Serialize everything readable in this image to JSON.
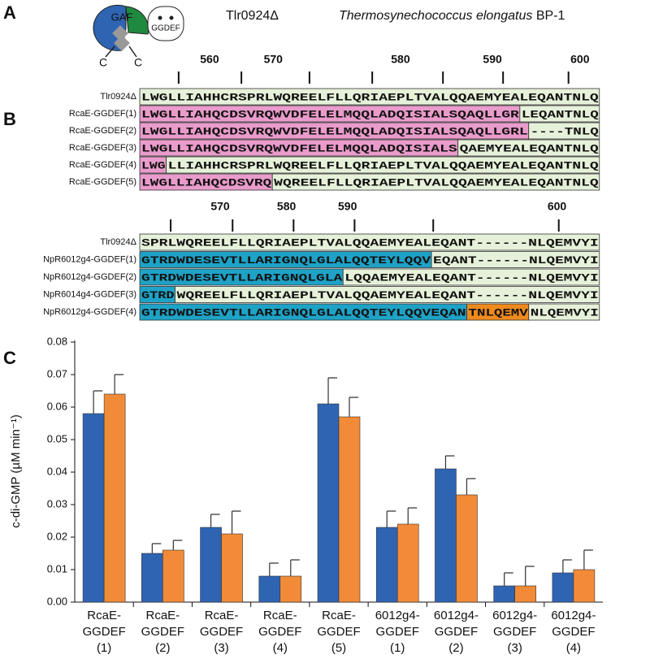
{
  "panel_a": {
    "letter": "A",
    "icon": {
      "domain1": "GAF",
      "domain2": "GGDEF",
      "terminus1": "C",
      "terminus2": "C"
    },
    "construct": "Tlr0924Δ",
    "organism": "Thermosynechococcus elongatus",
    "strain": "BP-1"
  },
  "panel_b": {
    "letter": "B",
    "alignments": [
      {
        "ruler": [
          560,
          570,
          580,
          590,
          600
        ],
        "rows": [
          {
            "label": "Tlr0924Δ",
            "segments": [
              {
                "text": "LWGLLIAHHCRSPRLWQREELFLLQRIAEPLTVALQQAEMYEALEQANTNLQ",
                "color": "#e6f1d9"
              }
            ]
          },
          {
            "label": "RcaE-GGDEF(1)",
            "segments": [
              {
                "text": "LWGLLIAHQCDSVRQWVDFELELMQQLADQISIALSQAQLLGR",
                "color": "#e99bcb"
              },
              {
                "text": "LEQANTNLQ",
                "color": "#e6f1d9"
              }
            ]
          },
          {
            "label": "RcaE-GGDEF(2)",
            "segments": [
              {
                "text": "LWGLLIAHQCDSVRQWVDFELELMQQLADQISIALSQAQLLGRL",
                "color": "#e99bcb"
              },
              {
                "text": "----TNLQ",
                "color": "#e6f1d9"
              }
            ]
          },
          {
            "label": "RcaE-GGDEF(3)",
            "segments": [
              {
                "text": "LWGLLIAHQCDSVRQWVDFELELMQQLADQISIALS",
                "color": "#e99bcb"
              },
              {
                "text": "QAEMYEALEQANTNLQ",
                "color": "#e6f1d9"
              }
            ]
          },
          {
            "label": "RcaE-GGDEF(4)",
            "segments": [
              {
                "text": "LWG",
                "color": "#e99bcb"
              },
              {
                "text": "LLIAHHCRSPRLWQREELFLLQRIAEPLTVALQQAEMYEALEQANTNLQ",
                "color": "#e6f1d9"
              }
            ]
          },
          {
            "label": "RcaE-GGDEF(5)",
            "segments": [
              {
                "text": "LWGLLIAHQCDSVRQ",
                "color": "#e99bcb"
              },
              {
                "text": "WQREELFLLQRIAEPLTVALQQAEMYEALEQANTNLQ",
                "color": "#e6f1d9"
              }
            ]
          }
        ]
      },
      {
        "ruler": [
          570,
          580,
          590,
          600
        ],
        "rows": [
          {
            "label": "Tlr0924Δ",
            "segments": [
              {
                "text": "SPRLWQREELFLLQRIAEPLTVALQQAEMYEALEQANT------NLQEMVYI",
                "color": "#e6f1d9"
              }
            ]
          },
          {
            "label": "NpR6012g4-GGDEF(1)",
            "segments": [
              {
                "text": "GTRDWDESEVTLLARIGNQLGLALQQTEYLQQV",
                "color": "#1ea2c6"
              },
              {
                "text": "EQANT------NLQEMVYI",
                "color": "#e6f1d9"
              }
            ]
          },
          {
            "label": "NpR6012g4-GGDEF(2)",
            "segments": [
              {
                "text": "GTRDWDESEVTLLARIGNQLGLA",
                "color": "#1ea2c6"
              },
              {
                "text": "LQQAEMYEALEQANT------NLQEMVYI",
                "color": "#e6f1d9"
              }
            ]
          },
          {
            "label": "NpR6014g4-GGDEF(3)",
            "segments": [
              {
                "text": "GTRD",
                "color": "#1ea2c6"
              },
              {
                "text": "WQREELFLLQRIAEPLTVALQQAEMYEALEQANT------NLQEMVYI",
                "color": "#e6f1d9"
              }
            ]
          },
          {
            "label": "NpR6012g4-GGDEF(4)",
            "segments": [
              {
                "text": "GTRDWDESEVTLLARIGNQLGLALQQTEYLQQVEQAN",
                "color": "#1ea2c6"
              },
              {
                "text": "TNLQEMV",
                "color": "#ef8a1e"
              },
              {
                "text": "NLQEMVYI",
                "color": "#e6f1d9"
              }
            ]
          }
        ]
      }
    ]
  },
  "chart_data": {
    "type": "bar",
    "panel_letter": "C",
    "y_label": "c-di-GMP (µM min⁻¹)",
    "categories": [
      "RcaE-\nGGDEF\n(1)",
      "RcaE-\nGGDEF\n(2)",
      "RcaE-\nGGDEF\n(3)",
      "RcaE-\nGGDEF\n(4)",
      "RcaE-\nGGDEF\n(5)",
      "6012g4-\nGGDEF\n(1)",
      "6012g4-\nGGDEF\n(2)",
      "6012g4-\nGGDEF\n(3)",
      "6012g4-\nGGDEF\n(4)"
    ],
    "series": [
      {
        "color": "#2f64b3",
        "values": [
          0.058,
          0.015,
          0.023,
          0.008,
          0.061,
          0.023,
          0.041,
          0.005,
          0.009
        ],
        "errors": [
          0.007,
          0.003,
          0.004,
          0.004,
          0.008,
          0.005,
          0.004,
          0.004,
          0.004
        ]
      },
      {
        "color": "#f28b38",
        "values": [
          0.064,
          0.016,
          0.021,
          0.008,
          0.057,
          0.024,
          0.033,
          0.005,
          0.01
        ],
        "errors": [
          0.006,
          0.003,
          0.007,
          0.005,
          0.006,
          0.005,
          0.005,
          0.006,
          0.006
        ]
      }
    ],
    "ylim": [
      0,
      0.08
    ],
    "yticks": [
      {
        "value": 0,
        "label": "0.00"
      },
      {
        "value": 0.01,
        "label": "0.01"
      },
      {
        "value": 0.02,
        "label": "0.02"
      },
      {
        "value": 0.03,
        "label": "0.03"
      },
      {
        "value": 0.04,
        "label": "0.04"
      },
      {
        "value": 0.05,
        "label": "0.05"
      },
      {
        "value": 0.06,
        "label": "0.06"
      },
      {
        "value": 0.07,
        "label": "0.07"
      },
      {
        "value": 0.08,
        "label": "0.08"
      }
    ],
    "grid": false
  }
}
